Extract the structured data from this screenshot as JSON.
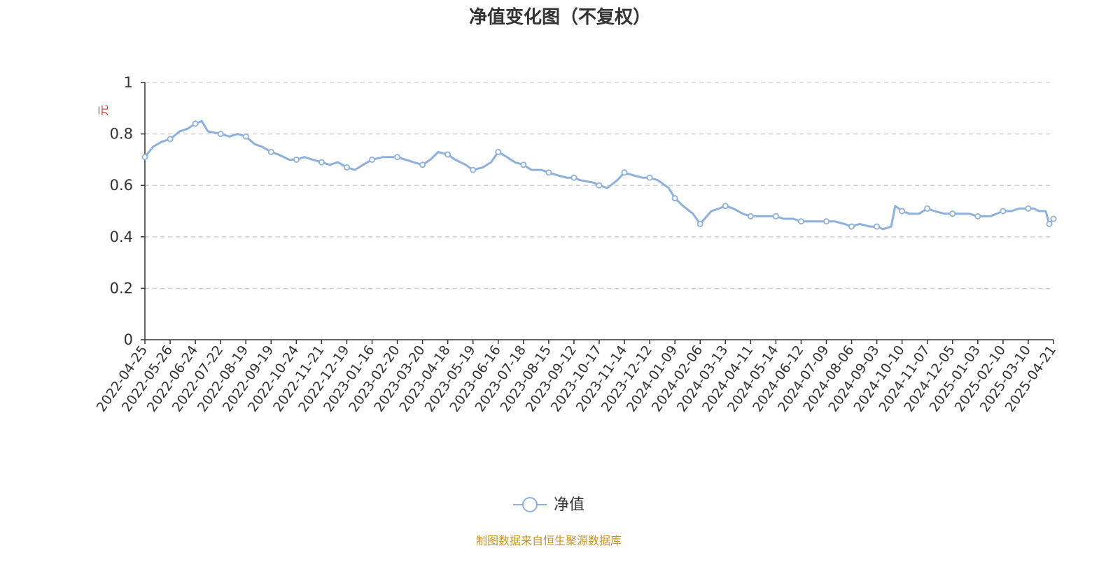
{
  "chart_data": {
    "type": "line",
    "title": "净值变化图（不复权）",
    "ylabel": "元",
    "ylim": [
      0,
      1
    ],
    "y_ticks": [
      "0",
      "0.2",
      "0.4",
      "0.6",
      "0.8",
      "1"
    ],
    "y_tick_values": [
      0,
      0.2,
      0.4,
      0.6,
      0.8,
      1
    ],
    "x_ticks": [
      "2022-04-25",
      "2022-05-26",
      "2022-06-24",
      "2022-07-22",
      "2022-08-19",
      "2022-09-19",
      "2022-10-24",
      "2022-11-21",
      "2022-12-19",
      "2023-01-16",
      "2023-02-20",
      "2023-03-20",
      "2023-04-18",
      "2023-05-19",
      "2023-06-16",
      "2023-07-18",
      "2023-08-15",
      "2023-09-12",
      "2023-10-17",
      "2023-11-14",
      "2023-12-12",
      "2024-01-09",
      "2024-02-06",
      "2024-03-13",
      "2024-04-11",
      "2024-05-14",
      "2024-06-12",
      "2024-07-09",
      "2024-08-06",
      "2024-09-03",
      "2024-10-10",
      "2024-11-07",
      "2024-12-05",
      "2025-01-03",
      "2025-02-10",
      "2025-03-10",
      "2025-04-21"
    ],
    "grid": true,
    "legend_position": "bottom-center",
    "series": [
      {
        "name": "净值",
        "x": [
          "2022-04-25",
          "2022-05-05",
          "2022-05-16",
          "2022-05-26",
          "2022-06-06",
          "2022-06-15",
          "2022-06-24",
          "2022-07-01",
          "2022-07-08",
          "2022-07-22",
          "2022-08-01",
          "2022-08-10",
          "2022-08-19",
          "2022-08-30",
          "2022-09-08",
          "2022-09-19",
          "2022-09-29",
          "2022-10-14",
          "2022-10-24",
          "2022-11-02",
          "2022-11-11",
          "2022-11-21",
          "2022-11-30",
          "2022-12-09",
          "2022-12-19",
          "2022-12-28",
          "2023-01-06",
          "2023-01-16",
          "2023-01-31",
          "2023-02-09",
          "2023-02-20",
          "2023-03-01",
          "2023-03-10",
          "2023-03-20",
          "2023-03-29",
          "2023-04-07",
          "2023-04-18",
          "2023-04-27",
          "2023-05-10",
          "2023-05-19",
          "2023-05-30",
          "2023-06-08",
          "2023-06-16",
          "2023-06-27",
          "2023-07-07",
          "2023-07-18",
          "2023-07-27",
          "2023-08-07",
          "2023-08-15",
          "2023-08-24",
          "2023-09-04",
          "2023-09-12",
          "2023-09-21",
          "2023-10-10",
          "2023-10-17",
          "2023-10-26",
          "2023-11-06",
          "2023-11-14",
          "2023-11-23",
          "2023-12-04",
          "2023-12-12",
          "2023-12-21",
          "2024-01-02",
          "2024-01-09",
          "2024-01-18",
          "2024-01-29",
          "2024-02-06",
          "2024-02-22",
          "2024-03-04",
          "2024-03-13",
          "2024-03-22",
          "2024-04-02",
          "2024-04-11",
          "2024-04-22",
          "2024-05-06",
          "2024-05-14",
          "2024-05-23",
          "2024-06-03",
          "2024-06-12",
          "2024-06-21",
          "2024-07-01",
          "2024-07-09",
          "2024-07-18",
          "2024-07-29",
          "2024-08-06",
          "2024-08-15",
          "2024-08-26",
          "2024-09-03",
          "2024-09-12",
          "2024-09-24",
          "2024-09-30",
          "2024-10-10",
          "2024-10-18",
          "2024-10-29",
          "2024-11-07",
          "2024-11-15",
          "2024-11-26",
          "2024-12-05",
          "2024-12-13",
          "2024-12-24",
          "2025-01-03",
          "2025-01-13",
          "2025-01-22",
          "2025-02-10",
          "2025-02-19",
          "2025-02-28",
          "2025-03-10",
          "2025-03-19",
          "2025-03-28",
          "2025-04-08",
          "2025-04-14",
          "2025-04-21"
        ],
        "values": [
          0.71,
          0.75,
          0.77,
          0.78,
          0.81,
          0.82,
          0.84,
          0.85,
          0.81,
          0.8,
          0.79,
          0.8,
          0.79,
          0.76,
          0.75,
          0.73,
          0.72,
          0.7,
          0.7,
          0.71,
          0.7,
          0.69,
          0.68,
          0.69,
          0.67,
          0.66,
          0.68,
          0.7,
          0.71,
          0.71,
          0.71,
          0.7,
          0.69,
          0.68,
          0.7,
          0.73,
          0.72,
          0.7,
          0.68,
          0.66,
          0.67,
          0.69,
          0.73,
          0.71,
          0.69,
          0.68,
          0.66,
          0.66,
          0.65,
          0.64,
          0.63,
          0.63,
          0.62,
          0.61,
          0.6,
          0.59,
          0.62,
          0.65,
          0.64,
          0.63,
          0.63,
          0.62,
          0.59,
          0.55,
          0.52,
          0.49,
          0.45,
          0.5,
          0.51,
          0.52,
          0.51,
          0.49,
          0.48,
          0.48,
          0.48,
          0.48,
          0.47,
          0.47,
          0.46,
          0.46,
          0.46,
          0.46,
          0.46,
          0.45,
          0.44,
          0.45,
          0.44,
          0.44,
          0.43,
          0.44,
          0.52,
          0.5,
          0.49,
          0.49,
          0.51,
          0.5,
          0.49,
          0.49,
          0.49,
          0.49,
          0.48,
          0.48,
          0.48,
          0.5,
          0.5,
          0.51,
          0.51,
          0.51,
          0.5,
          0.5,
          0.45,
          0.47
        ],
        "marker_dates": [
          "2022-04-25",
          "2022-05-26",
          "2022-06-24",
          "2022-07-22",
          "2022-08-19",
          "2022-09-19",
          "2022-10-24",
          "2022-11-21",
          "2022-12-19",
          "2023-01-16",
          "2023-02-20",
          "2023-03-20",
          "2023-04-18",
          "2023-05-19",
          "2023-06-16",
          "2023-07-18",
          "2023-08-15",
          "2023-09-12",
          "2023-10-17",
          "2023-11-14",
          "2023-12-12",
          "2024-01-09",
          "2024-02-06",
          "2024-03-13",
          "2024-04-11",
          "2024-05-14",
          "2024-06-12",
          "2024-07-09",
          "2024-08-06",
          "2024-09-03",
          "2024-10-10",
          "2024-11-07",
          "2024-12-05",
          "2025-01-03",
          "2025-02-10",
          "2025-03-10",
          "2025-04-14",
          "2025-04-21"
        ]
      }
    ],
    "source_note": "制图数据来自恒生聚源数据库"
  },
  "colors": {
    "line": "#8eb0dd",
    "axis": "#333333",
    "grid": "#cccccc",
    "unit": "#e0312e",
    "source": "#c8951f"
  }
}
